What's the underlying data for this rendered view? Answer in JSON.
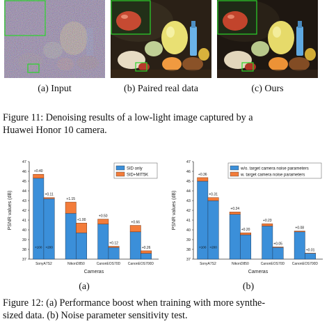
{
  "figure11": {
    "panels": [
      {
        "label": "(a) Input"
      },
      {
        "label": "(b) Paired real data"
      },
      {
        "label": "(c) Ours"
      }
    ],
    "caption_line1": "Figure 11: Denoising results of a low-light image captured by a",
    "caption_line2": "Huawei Honor 10 camera."
  },
  "figure12": {
    "caption_line1": "Figure 12: (a) Performance boost when training with more synthe-",
    "caption_line2": "sized data. (b) Noise parameter sensitivity test.",
    "panel_labels": [
      "(a)",
      "(b)"
    ]
  },
  "chart_data": [
    {
      "type": "bar",
      "stacked": true,
      "xlabel": "Cameras",
      "ylabel": "PSNR values (dB)",
      "ylim": [
        37,
        47
      ],
      "yticks": [
        37,
        38,
        39,
        40,
        41,
        42,
        43,
        44,
        45,
        46,
        47
      ],
      "categories": [
        "SonyA7S2",
        "NikonD850",
        "CanonEOS70D",
        "CanonEOS700D"
      ],
      "bar_labels": [
        "×100",
        "×200"
      ],
      "legend_position": "top-right",
      "series": [
        {
          "name": "SID only",
          "color": "#3b8fd9",
          "values": [
            [
              45.3,
              43.2
            ],
            [
              41.7,
              39.7
            ],
            [
              40.6,
              38.2
            ],
            [
              39.8,
              37.6
            ]
          ]
        },
        {
          "name": "SID+MIT5K",
          "color": "#f37c3a",
          "increments": [
            [
              0.4,
              0.11
            ],
            [
              1.15,
              1.0
            ],
            [
              0.5,
              0.12
            ],
            [
              0.66,
              0.26
            ]
          ]
        }
      ],
      "annotations": [
        [
          "+0.40",
          "+0.11"
        ],
        [
          "+1.15",
          "+1.00"
        ],
        [
          "+0.50",
          "+0.12"
        ],
        [
          "+0.66",
          "+0.26"
        ]
      ]
    },
    {
      "type": "bar",
      "stacked": true,
      "xlabel": "Cameras",
      "ylabel": "PSNR values (dB)",
      "ylim": [
        37,
        47
      ],
      "yticks": [
        37,
        38,
        39,
        40,
        41,
        42,
        43,
        44,
        45,
        46,
        47
      ],
      "categories": [
        "SonyA7S2",
        "NikonD850",
        "CanonEOS70D",
        "CanonEOS700D"
      ],
      "bar_labels": [
        "×100",
        "×200"
      ],
      "legend_position": "top-right",
      "series": [
        {
          "name": "w/o. target camera noise parameters",
          "color": "#3b8fd9",
          "values": [
            [
              45.0,
              43.0
            ],
            [
              41.6,
              39.5
            ],
            [
              40.4,
              38.2
            ],
            [
              39.8,
              37.6
            ]
          ]
        },
        {
          "name": "w. target camera noise parameters",
          "color": "#f37c3a",
          "increments": [
            [
              0.36,
              0.31
            ],
            [
              0.24,
              0.2
            ],
            [
              0.23,
              0.05
            ],
            [
              0.08,
              0.01
            ]
          ]
        }
      ],
      "annotations": [
        [
          "+0.36",
          "+0.31"
        ],
        [
          "+0.24",
          "+0.20"
        ],
        [
          "+0.23",
          "+0.05"
        ],
        [
          "+0.08",
          "+0.01"
        ]
      ]
    }
  ]
}
